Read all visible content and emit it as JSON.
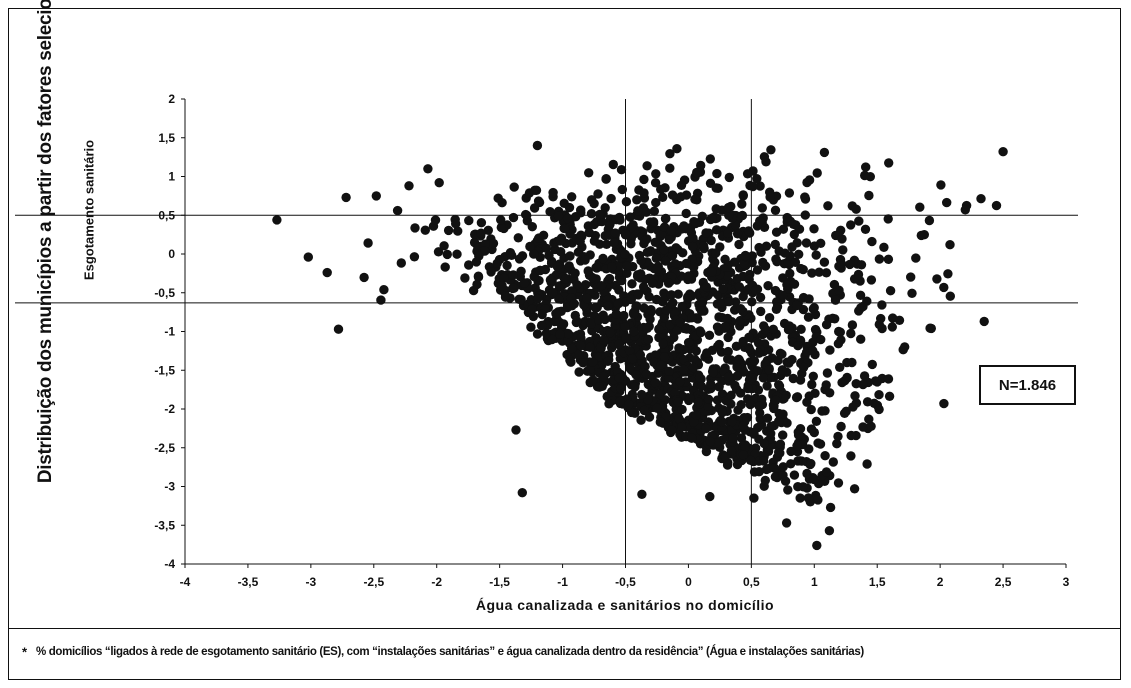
{
  "outer_title": "Distribuição dos municípios a partir dos fatores selecionados*",
  "n_label": "N=1.846",
  "footnote_marker": "*",
  "footnote_text": "% domicílios “ligados à rede de esgotamento sanitário (ES), com “instalações sanitárias” e água canalizada dentro da residência” (Água e instalações sanitárias)",
  "chart_data": {
    "type": "scatter",
    "title": "",
    "xlabel": "Água canalizada e sanitários no domicílio",
    "ylabel": "Esgotamento sanitário",
    "xlim": [
      -4,
      3
    ],
    "ylim": [
      -4,
      2
    ],
    "x_ticks": [
      -4,
      -3.5,
      -3,
      -2.5,
      -2,
      -1.5,
      -1,
      -0.5,
      0,
      0.5,
      1,
      1.5,
      2,
      2.5,
      3
    ],
    "y_ticks": [
      -4,
      -3.5,
      -3,
      -2.5,
      -2,
      -1.5,
      -1,
      -0.5,
      0,
      0.5,
      1,
      1.5,
      2
    ],
    "x_tick_labels": [
      "-4",
      "-3,5",
      "-3",
      "-2,5",
      "-2",
      "-1,5",
      "-1",
      "-0,5",
      "0",
      "0,5",
      "1",
      "1,5",
      "2",
      "2,5",
      "3"
    ],
    "y_tick_labels": [
      "-4",
      "-3,5",
      "-3",
      "-2,5",
      "-2",
      "-1,5",
      "-1",
      "-0,5",
      "0",
      "0,5",
      "1",
      "1,5",
      "2"
    ],
    "reference_lines": {
      "vertical": [
        -0.5,
        0.5
      ],
      "horizontal": [
        0.5,
        -0.63
      ]
    },
    "marker_color": "#111111",
    "grid": false,
    "n": 1846,
    "outliers": [
      [
        -3.27,
        0.44
      ],
      [
        -3.02,
        -0.04
      ],
      [
        -2.87,
        -0.24
      ],
      [
        -2.78,
        -0.97
      ],
      [
        -2.72,
        0.73
      ],
      [
        -2.48,
        0.75
      ],
      [
        -2.42,
        -0.46
      ],
      [
        -2.22,
        0.88
      ],
      [
        -2.07,
        1.1
      ],
      [
        -1.98,
        0.92
      ],
      [
        -1.37,
        -2.27
      ],
      [
        -1.32,
        -3.08
      ],
      [
        -1.2,
        1.4
      ],
      [
        -0.37,
        -3.1
      ],
      [
        0.17,
        -3.13
      ],
      [
        0.52,
        -3.15
      ],
      [
        0.78,
        -3.47
      ],
      [
        1.02,
        -3.76
      ],
      [
        1.12,
        -3.57
      ],
      [
        1.13,
        -3.27
      ],
      [
        1.32,
        -3.03
      ],
      [
        1.42,
        -2.71
      ],
      [
        1.5,
        -1.65
      ],
      [
        1.62,
        -0.94
      ],
      [
        1.93,
        -0.96
      ],
      [
        2.03,
        -1.93
      ],
      [
        2.35,
        -0.87
      ],
      [
        1.85,
        0.24
      ],
      [
        2.2,
        0.57
      ],
      [
        2.5,
        1.32
      ],
      [
        -0.35,
        -2.02
      ],
      [
        0.87,
        -2.67
      ]
    ],
    "cloud_generation": {
      "seed": 1846,
      "count": 1814
    }
  }
}
